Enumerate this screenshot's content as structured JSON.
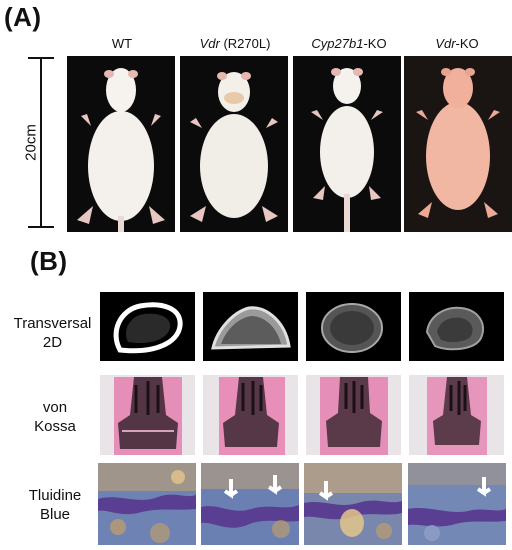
{
  "panel_a": {
    "label": "(A)",
    "scale": "20cm",
    "columns": [
      {
        "prefix_italic": "",
        "prefix": "WT",
        "suffix": ""
      },
      {
        "prefix_italic": "Vdr",
        "prefix": "",
        "suffix": " (R270L)"
      },
      {
        "prefix_italic": "Cyp27b1",
        "prefix": "",
        "suffix": "-KO"
      },
      {
        "prefix_italic": "Vdr",
        "prefix": "",
        "suffix": "-KO"
      }
    ]
  },
  "panel_b": {
    "label": "(B)",
    "rows": [
      {
        "line1": "Transversal",
        "line2": "2D"
      },
      {
        "line1": "von",
        "line2": "Kossa"
      },
      {
        "line1": "Tluidine",
        "line2": "Blue"
      }
    ]
  },
  "colors": {
    "mouse_fur": "#f4f1ec",
    "mouse_ko_fur": "#f2b7a3",
    "von_kossa_pink": "#e58fb8",
    "toluidine_blue": "#6e83b4",
    "toluidine_purple": "#5a3e91"
  }
}
